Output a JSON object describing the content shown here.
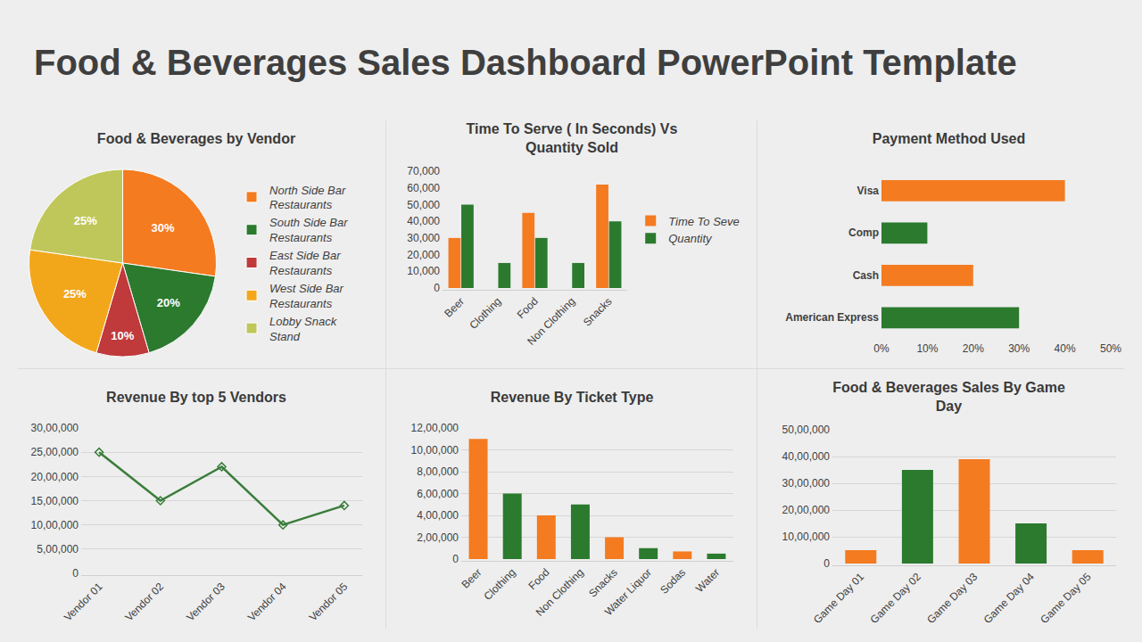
{
  "title": "Food & Beverages Sales Dashboard PowerPoint Template",
  "chart_data": [
    {
      "type": "pie",
      "title": "Food & Beverages by Vendor",
      "categories": [
        "North Side Bar Restaurants",
        "South Side Bar Restaurants",
        "East Side Bar Restaurants",
        "West Side Bar Restaurants",
        "Lobby Snack Stand"
      ],
      "values": [
        30,
        20,
        10,
        25,
        25
      ],
      "value_labels": [
        "30%",
        "20%",
        "10%",
        "25%",
        "25%"
      ],
      "colors": [
        "#F47B20",
        "#2B7A2E",
        "#C0393B",
        "#F2A71B",
        "#BFC75A"
      ],
      "data_labels": true,
      "legend": "right"
    },
    {
      "type": "bar",
      "title": "Time To Serve ( In Seconds) Vs Quantity Sold",
      "categories": [
        "Beer",
        "Clothing",
        "Food",
        "Non Clothing",
        "Snacks"
      ],
      "series": [
        {
          "name": "Time To Seve",
          "color": "#F47B20",
          "values": [
            30000,
            0,
            45000,
            0,
            62000
          ]
        },
        {
          "name": "Quantity",
          "color": "#2B7A2E",
          "values": [
            50000,
            15000,
            30000,
            15000,
            40000
          ]
        }
      ],
      "ylim": [
        0,
        70000
      ],
      "yticks": [
        0,
        {
          "value": 10000,
          "label": "10,000"
        },
        {
          "value": 20000,
          "label": "20,000"
        },
        {
          "value": 30000,
          "label": "30,000"
        },
        {
          "value": 40000,
          "label": "40,000"
        },
        {
          "value": 50000,
          "label": "50,000"
        },
        {
          "value": 60000,
          "label": "60,000"
        },
        {
          "value": 70000,
          "label": "70,000"
        }
      ],
      "grid": false,
      "legend": "right"
    },
    {
      "type": "bar",
      "title": "Payment Method Used",
      "orientation": "horizontal",
      "categories": [
        "Visa",
        "Comp",
        "Cash",
        "American Express"
      ],
      "values": [
        40,
        10,
        20,
        30
      ],
      "colors": [
        "#F47B20",
        "#2B7A2E",
        "#F47B20",
        "#2B7A2E"
      ],
      "xlim": [
        0,
        50
      ],
      "xticks": [
        {
          "value": 0,
          "label": "0%"
        },
        {
          "value": 10,
          "label": "10%"
        },
        {
          "value": 20,
          "label": "20%"
        },
        {
          "value": 30,
          "label": "30%"
        },
        {
          "value": 40,
          "label": "40%"
        },
        {
          "value": 50,
          "label": "50%"
        }
      ],
      "grid": false
    },
    {
      "type": "line",
      "title": "Revenue By top 5 Vendors",
      "categories": [
        "Vendor 01",
        "Vendor 02",
        "Vendor 03",
        "Vendor 04",
        "Vendor 05"
      ],
      "values": [
        2500000,
        1500000,
        2200000,
        1000000,
        1400000
      ],
      "color": "#3A7D3A",
      "marker": "diamond-open",
      "ylim": [
        0,
        3000000
      ],
      "yticks": [
        0,
        {
          "value": 500000,
          "label": "5,00,000"
        },
        {
          "value": 1000000,
          "label": "10,00,000"
        },
        {
          "value": 1500000,
          "label": "15,00,000"
        },
        {
          "value": 2000000,
          "label": "20,00,000"
        },
        {
          "value": 2500000,
          "label": "25,00,000"
        },
        {
          "value": 3000000,
          "label": "30,00,000"
        }
      ],
      "grid": true
    },
    {
      "type": "bar",
      "title": "Revenue By Ticket Type",
      "categories": [
        "Beer",
        "Clothing",
        "Food",
        "Non Clothing",
        "Snacks",
        "Water Liquor",
        "Sodas",
        "Water"
      ],
      "values": [
        1100000,
        600000,
        400000,
        500000,
        200000,
        100000,
        70000,
        50000
      ],
      "colors": [
        "#F47B20",
        "#2B7A2E",
        "#F47B20",
        "#2B7A2E",
        "#F47B20",
        "#2B7A2E",
        "#F47B20",
        "#2B7A2E"
      ],
      "ylim": [
        0,
        1200000
      ],
      "yticks": [
        0,
        {
          "value": 200000,
          "label": "2,00,000"
        },
        {
          "value": 400000,
          "label": "4,00,000"
        },
        {
          "value": 600000,
          "label": "6,00,000"
        },
        {
          "value": 800000,
          "label": "8,00,000"
        },
        {
          "value": 1000000,
          "label": "10,00,000"
        },
        {
          "value": 1200000,
          "label": "12,00,000"
        }
      ],
      "grid": true
    },
    {
      "type": "bar",
      "title": "Food & Beverages Sales By Game Day",
      "categories": [
        "Game Day 01",
        "Game Day 02",
        "Game Day 03",
        "Game Day 04",
        "Game Day 05"
      ],
      "values": [
        500000,
        3500000,
        3900000,
        1500000,
        500000
      ],
      "colors": [
        "#F47B20",
        "#2B7A2E",
        "#F47B20",
        "#2B7A2E",
        "#F47B20"
      ],
      "ylim": [
        0,
        5000000
      ],
      "yticks": [
        0,
        {
          "value": 1000000,
          "label": "10,00,000"
        },
        {
          "value": 2000000,
          "label": "20,00,000"
        },
        {
          "value": 3000000,
          "label": "30,00,000"
        },
        {
          "value": 4000000,
          "label": "40,00,000"
        },
        {
          "value": 5000000,
          "label": "50,00,000"
        }
      ],
      "grid": true
    }
  ]
}
